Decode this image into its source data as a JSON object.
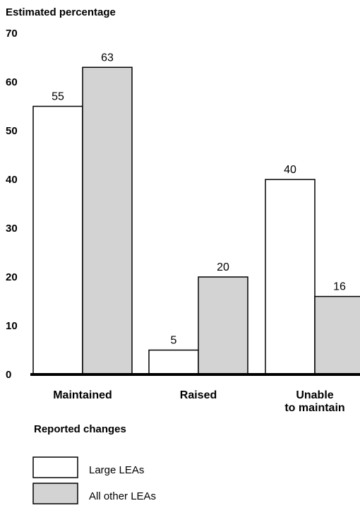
{
  "chart_data": {
    "type": "bar",
    "ylabel": "Estimated percentage",
    "xlabel": "Reported changes",
    "ylim": [
      0,
      70
    ],
    "yticks": [
      0,
      10,
      20,
      30,
      40,
      50,
      60,
      70
    ],
    "categories": [
      [
        "Maintained"
      ],
      [
        "Raised"
      ],
      [
        "Unable",
        "to maintain"
      ]
    ],
    "series": [
      {
        "name": "Large LEAs",
        "values": [
          55,
          5,
          40
        ],
        "color": "#ffffff"
      },
      {
        "name": "All other LEAs",
        "values": [
          63,
          20,
          16
        ],
        "color": "#d3d3d3"
      }
    ],
    "grid": false,
    "legend_position": "bottom-left"
  }
}
